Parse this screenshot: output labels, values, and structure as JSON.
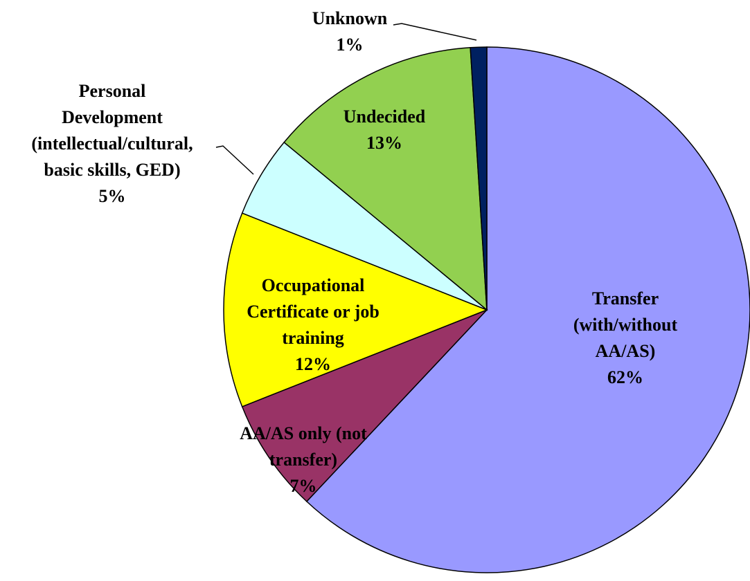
{
  "chart_data": {
    "type": "pie",
    "categories": [
      "Transfer\n(with/without AA/AS)",
      "AA/AS only (not\ntransfer)",
      "Occupational\nCertificate or job\ntraining",
      "Personal\nDevelopment\n(intellectual/cultural,\nbasic skills, GED)",
      "Undecided",
      "Unknown"
    ],
    "values": [
      62,
      7,
      12,
      5,
      13,
      1
    ],
    "value_labels": [
      "62%",
      "7%",
      "12%",
      "5%",
      "13%",
      "1%"
    ],
    "colors": [
      "#9999ff",
      "#993366",
      "#ffff00",
      "#ccffff",
      "#92d050",
      "#002060"
    ]
  }
}
